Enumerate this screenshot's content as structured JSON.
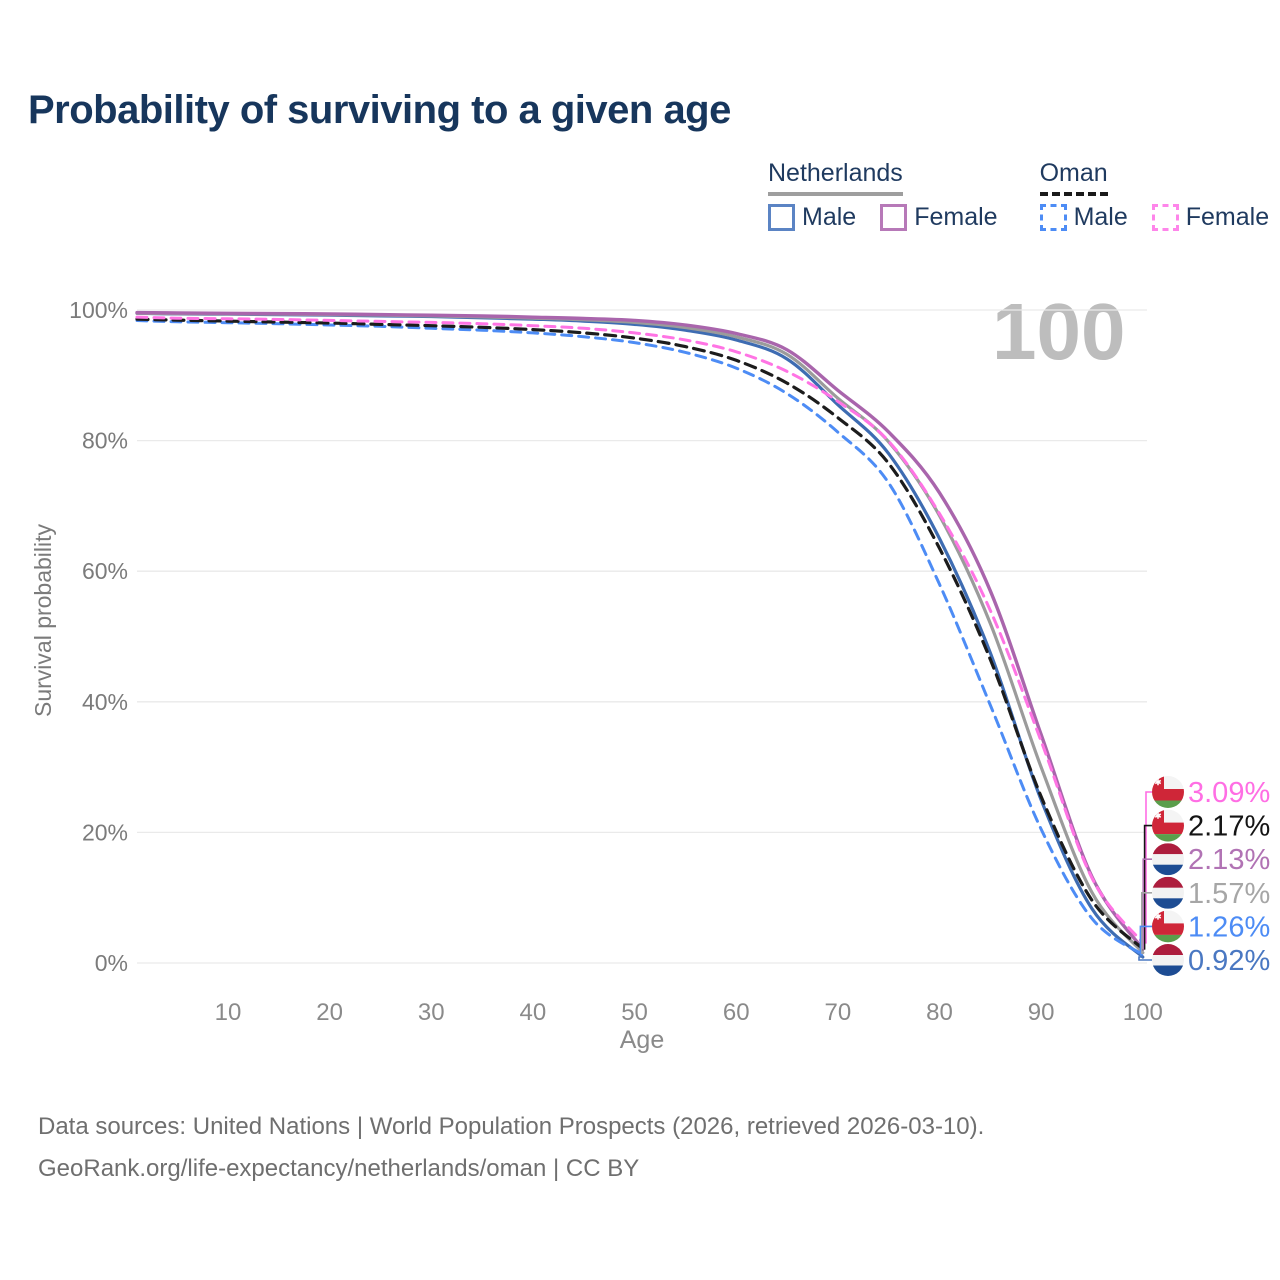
{
  "title": "Probability of surviving to a given age",
  "legend": {
    "groups": [
      {
        "name": "Netherlands",
        "underline_color": "#9e9e9e",
        "underline_style": "solid",
        "items": [
          {
            "label": "Male",
            "color": "#5b84c4",
            "dashed": false
          },
          {
            "label": "Female",
            "color": "#b779b8",
            "dashed": false
          }
        ]
      },
      {
        "name": "Oman",
        "underline_color": "#1a1a1a",
        "underline_style": "dashed",
        "items": [
          {
            "label": "Male",
            "color": "#4d8cf5",
            "dashed": true
          },
          {
            "label": "Female",
            "color": "#fe85ea",
            "dashed": true
          }
        ]
      }
    ]
  },
  "chart_data": {
    "type": "line",
    "title": "Probability of surviving to a given age",
    "x_label": "Age",
    "y_label": "Survival probability",
    "x_ticks": [
      10,
      20,
      30,
      40,
      50,
      60,
      70,
      80,
      90,
      100
    ],
    "y_ticks": [
      {
        "value": 0,
        "label": "0%"
      },
      {
        "value": 20,
        "label": "20%"
      },
      {
        "value": 40,
        "label": "40%"
      },
      {
        "value": 60,
        "label": "60%"
      },
      {
        "value": 80,
        "label": "80%"
      },
      {
        "value": 100,
        "label": "100%"
      }
    ],
    "xlim": [
      1,
      100
    ],
    "ylim": [
      0,
      100
    ],
    "grid": "horizontal",
    "legend_position": "top-right",
    "watermark": "100",
    "ages": [
      0,
      5,
      10,
      15,
      20,
      25,
      30,
      35,
      40,
      45,
      50,
      55,
      60,
      65,
      70,
      75,
      80,
      85,
      90,
      95,
      100
    ],
    "series": [
      {
        "id": "netherlands-male",
        "country": "Netherlands",
        "sex": "Male",
        "flag": "netherlands",
        "color": "#3e6cb2",
        "dashed": false,
        "width": 3.2,
        "values": [
          99.5,
          99.4,
          99.35,
          99.3,
          99.2,
          99.1,
          99.0,
          98.8,
          98.6,
          98.3,
          97.8,
          96.9,
          95.4,
          92.5,
          85.5,
          78.0,
          65.0,
          47.5,
          25.0,
          8.3,
          0.92
        ],
        "end_label": "0.92%",
        "label_color": "#4a78c2"
      },
      {
        "id": "netherlands-all",
        "country": "Netherlands",
        "sex": "Both",
        "flag": "netherlands",
        "color": "#9b9b9b",
        "dashed": false,
        "width": 3.2,
        "values": [
          99.5,
          99.45,
          99.4,
          99.35,
          99.3,
          99.2,
          99.1,
          98.95,
          98.75,
          98.5,
          98.1,
          97.3,
          95.9,
          93.2,
          86.5,
          79.8,
          68.5,
          52.0,
          30.0,
          10.8,
          1.57
        ],
        "end_label": "1.57%",
        "label_color": "#a6a6a6"
      },
      {
        "id": "netherlands-female",
        "country": "Netherlands",
        "sex": "Female",
        "flag": "netherlands",
        "color": "#a965ac",
        "dashed": false,
        "width": 3.4,
        "values": [
          99.6,
          99.55,
          99.5,
          99.45,
          99.4,
          99.3,
          99.2,
          99.1,
          98.9,
          98.7,
          98.4,
          97.7,
          96.4,
          93.9,
          87.7,
          81.3,
          72.0,
          57.0,
          35.0,
          13.2,
          2.13
        ],
        "end_label": "2.13%",
        "label_color": "#b173b4"
      },
      {
        "id": "oman-male",
        "country": "Oman",
        "sex": "Male",
        "flag": "oman",
        "color": "#4d8cf5",
        "dashed": true,
        "width": 3,
        "values": [
          98.4,
          98.2,
          98.05,
          97.9,
          97.7,
          97.5,
          97.2,
          96.9,
          96.5,
          95.9,
          95.0,
          93.5,
          91.1,
          87.2,
          81.3,
          73.5,
          58.0,
          39.5,
          20.5,
          6.8,
          1.26
        ],
        "end_label": "1.26%",
        "label_color": "#4d8cf5"
      },
      {
        "id": "oman-all",
        "country": "Oman",
        "sex": "Both",
        "flag": "oman",
        "color": "#1c1c1c",
        "dashed": true,
        "width": 3.2,
        "values": [
          98.6,
          98.45,
          98.3,
          98.15,
          98.0,
          97.8,
          97.6,
          97.35,
          97.0,
          96.5,
          95.7,
          94.4,
          92.3,
          88.8,
          83.5,
          76.5,
          63.5,
          46.5,
          25.5,
          9.6,
          2.17
        ],
        "end_label": "2.17%",
        "label_color": "#141414"
      },
      {
        "id": "oman-female",
        "country": "Oman",
        "sex": "Female",
        "flag": "oman",
        "color": "#ff74e4",
        "dashed": true,
        "width": 3,
        "values": [
          98.9,
          98.75,
          98.65,
          98.55,
          98.4,
          98.25,
          98.1,
          97.9,
          97.6,
          97.2,
          96.5,
          95.4,
          93.6,
          90.6,
          86.0,
          79.9,
          68.8,
          54.0,
          34.0,
          13.0,
          3.09
        ],
        "end_label": "3.09%",
        "label_color": "#ff6ee4"
      }
    ]
  },
  "flags": {
    "netherlands": {
      "red": "#ad1d3d",
      "white": "#f2f2f2",
      "blue": "#1d4c93"
    },
    "oman": {
      "red": "#cf2638",
      "white": "#f4f4f4",
      "green": "#5a9e4b"
    }
  },
  "footer": {
    "line1": "Data sources: United Nations | World Population Prospects (2026, retrieved 2026-03-10).",
    "line2": "GeoRank.org/life-expectancy/netherlands/oman | CC BY"
  }
}
